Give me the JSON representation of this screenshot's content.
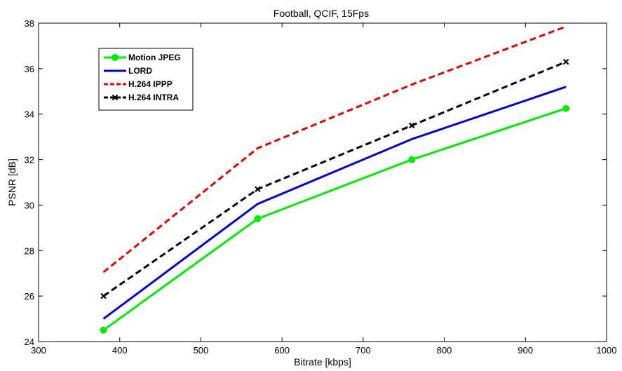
{
  "chart_data": {
    "type": "line",
    "title": "Football, QCIF, 15Fps",
    "xlabel": "Bitrate [kbps]",
    "ylabel": "PSNR [dB]",
    "xlim": [
      300,
      1000
    ],
    "ylim": [
      24,
      38
    ],
    "xticks": [
      "300",
      "400",
      "500",
      "600",
      "700",
      "800",
      "900",
      "1000"
    ],
    "yticks": [
      "24",
      "26",
      "28",
      "30",
      "32",
      "34",
      "36",
      "38"
    ],
    "grid": false,
    "legend_position": "top-left",
    "x": [
      380,
      570,
      760,
      950
    ],
    "series": [
      {
        "name": "Motion JPEG",
        "values": [
          24.5,
          29.4,
          32.0,
          34.25
        ],
        "color": "#00ee00",
        "dash": "solid",
        "marker": "circle"
      },
      {
        "name": "LORD",
        "values": [
          25.0,
          30.05,
          32.9,
          35.2
        ],
        "color": "#0000dd",
        "dash": "solid",
        "marker": "none"
      },
      {
        "name": "H.264 IPPP",
        "values": [
          27.05,
          32.5,
          35.3,
          37.85
        ],
        "color": "#ee0000",
        "dash": "dashed",
        "marker": "none"
      },
      {
        "name": "H.264 INTRA",
        "values": [
          26.0,
          30.7,
          33.5,
          36.3
        ],
        "color": "#000000",
        "dash": "dashed",
        "marker": "x"
      }
    ]
  }
}
